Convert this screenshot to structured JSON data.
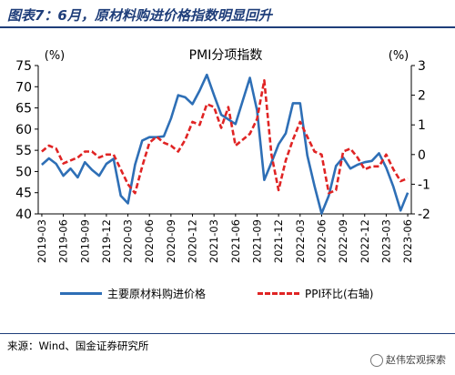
{
  "figure": {
    "title": "图表7：6月，原材料购进价格指数明显回升",
    "source": "来源：Wind、国金证券研究所",
    "watermark": "赵伟宏观探索"
  },
  "colors": {
    "primary": "#2e6fb6",
    "secondary": "#e02424",
    "title": "#1f3e7a"
  },
  "chart_data": {
    "type": "line",
    "title": "PMI分项指数",
    "left_unit": "(%)",
    "right_unit": "(%)",
    "left_ylim": [
      40,
      75
    ],
    "left_yticks": [
      40,
      45,
      50,
      55,
      60,
      65,
      70,
      75
    ],
    "right_ylim": [
      -2,
      3
    ],
    "right_yticks": [
      -2,
      -1,
      0,
      1,
      2,
      3
    ],
    "grid": false,
    "legend_position": "bottom",
    "x_tick_labels": [
      "2019-03",
      "2019-06",
      "2019-09",
      "2019-12",
      "2020-03",
      "2020-06",
      "2020-09",
      "2020-12",
      "2021-03",
      "2021-06",
      "2021-09",
      "2021-12",
      "2022-03",
      "2022-06",
      "2022-09",
      "2022-12",
      "2023-03",
      "2023-06"
    ],
    "x": [
      "2019-03",
      "2019-04",
      "2019-05",
      "2019-06",
      "2019-07",
      "2019-08",
      "2019-09",
      "2019-10",
      "2019-11",
      "2019-12",
      "2020-01",
      "2020-02",
      "2020-03",
      "2020-04",
      "2020-05",
      "2020-06",
      "2020-07",
      "2020-08",
      "2020-09",
      "2020-10",
      "2020-11",
      "2020-12",
      "2021-01",
      "2021-02",
      "2021-03",
      "2021-04",
      "2021-05",
      "2021-06",
      "2021-07",
      "2021-08",
      "2021-09",
      "2021-10",
      "2021-11",
      "2021-12",
      "2022-01",
      "2022-02",
      "2022-03",
      "2022-04",
      "2022-05",
      "2022-06",
      "2022-07",
      "2022-08",
      "2022-09",
      "2022-10",
      "2022-11",
      "2022-12",
      "2023-01",
      "2023-02",
      "2023-03",
      "2023-04",
      "2023-05",
      "2023-06"
    ],
    "series": [
      {
        "name": "主要原材料购进价格",
        "axis": "left",
        "color": "#2e6fb6",
        "dash": false,
        "values": [
          51.6,
          53.1,
          51.8,
          49.0,
          50.7,
          48.6,
          52.2,
          50.4,
          49.0,
          51.8,
          53.0,
          44.3,
          42.5,
          51.6,
          57.3,
          58.1,
          58.1,
          58.3,
          62.5,
          68.0,
          67.5,
          65.9,
          69.1,
          72.8,
          68.0,
          63.4,
          62.3,
          61.2,
          66.7,
          72.1,
          64.4,
          48.0,
          52.1,
          56.4,
          59.0,
          66.1,
          66.1,
          53.8,
          46.6,
          40.1,
          44.3,
          51.3,
          53.3,
          50.7,
          51.6,
          52.2,
          52.5,
          54.3,
          50.9,
          46.4,
          40.8,
          45.0
        ]
      },
      {
        "name": "PPI环比(右轴)",
        "axis": "right",
        "color": "#e02424",
        "dash": true,
        "values": [
          0.1,
          0.3,
          0.2,
          -0.3,
          -0.2,
          -0.1,
          0.1,
          0.1,
          -0.1,
          0.0,
          0.0,
          -0.5,
          -1.0,
          -1.3,
          -0.4,
          0.4,
          0.6,
          0.4,
          0.3,
          0.1,
          0.5,
          1.1,
          1.0,
          1.7,
          1.6,
          0.9,
          1.6,
          0.3,
          0.5,
          0.7,
          1.2,
          2.5,
          0.0,
          -1.2,
          -0.2,
          0.5,
          1.1,
          0.6,
          0.1,
          0.0,
          -1.3,
          -1.2,
          0.1,
          0.2,
          -0.1,
          -0.5,
          -0.4,
          -0.4,
          0.0,
          -0.5,
          -0.9,
          -0.8
        ]
      }
    ]
  }
}
